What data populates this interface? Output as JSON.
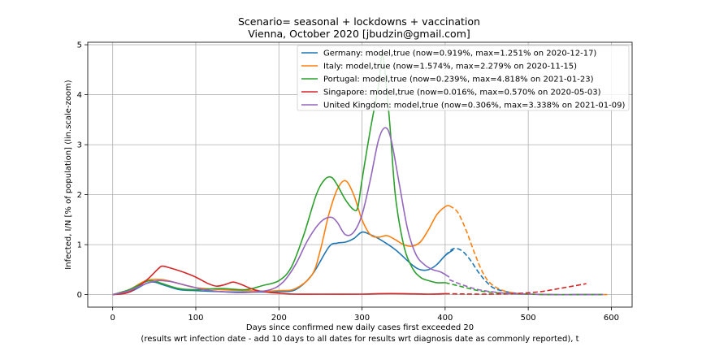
{
  "chart_data": {
    "type": "line",
    "title": "Scenario= seasonal + lockdowns + vaccination",
    "subtitle": "Vienna, October 2020 [jbudzin@gmail.com]",
    "xlabel": "Days since confirmed new daily cases first exceeded 20",
    "xlabel2": "(results wrt infection date - add 10 days to all dates for results wrt diagnosis date as commonly reported), t",
    "ylabel": "Infected, I/N [% of population] (lin.scale-zoom)",
    "xlim": [
      -30,
      625
    ],
    "ylim": [
      -0.25,
      5.05
    ],
    "xticks": [
      0,
      100,
      200,
      300,
      400,
      500,
      600
    ],
    "yticks": [
      0,
      1,
      2,
      3,
      4,
      5
    ],
    "grid": true,
    "legend_position": "top-right",
    "series": [
      {
        "name": "Germany: model,true (now=0.919%, max=1.251% on 2020-12-17)",
        "color": "#1f77b4",
        "true_x": [
          0,
          20,
          40,
          50,
          60,
          80,
          100,
          130,
          160,
          180,
          200,
          220,
          240,
          260,
          270,
          280,
          290,
          300,
          310,
          320,
          340,
          360,
          370,
          380,
          390,
          400,
          410
        ],
        "true_y": [
          0,
          0.05,
          0.22,
          0.25,
          0.2,
          0.1,
          0.08,
          0.06,
          0.05,
          0.05,
          0.06,
          0.1,
          0.4,
          0.95,
          1.03,
          1.05,
          1.12,
          1.25,
          1.2,
          1.12,
          0.9,
          0.6,
          0.5,
          0.5,
          0.6,
          0.78,
          0.9
        ],
        "model_x": [
          400,
          410,
          420,
          430,
          440,
          450,
          460,
          480,
          500,
          530,
          560,
          590
        ],
        "model_y": [
          0.78,
          0.92,
          0.88,
          0.7,
          0.45,
          0.25,
          0.12,
          0.04,
          0.01,
          0.0,
          0.0,
          0.0
        ]
      },
      {
        "name": "Italy: model,true (now=1.574%, max=2.279% on 2020-11-15)",
        "color": "#ff7f0e",
        "true_x": [
          0,
          20,
          40,
          60,
          80,
          100,
          130,
          160,
          180,
          200,
          220,
          240,
          250,
          260,
          270,
          280,
          290,
          300,
          310,
          320,
          330,
          340,
          350,
          360,
          370,
          380,
          390,
          400,
          405
        ],
        "true_y": [
          0,
          0.1,
          0.28,
          0.3,
          0.22,
          0.14,
          0.1,
          0.08,
          0.07,
          0.08,
          0.12,
          0.4,
          0.9,
          1.6,
          2.1,
          2.28,
          2.0,
          1.5,
          1.2,
          1.15,
          1.18,
          1.1,
          1.0,
          0.97,
          1.05,
          1.3,
          1.6,
          1.76,
          1.78
        ],
        "model_x": [
          405,
          415,
          425,
          435,
          445,
          455,
          470,
          490,
          520,
          560,
          595
        ],
        "model_y": [
          1.78,
          1.65,
          1.3,
          0.85,
          0.45,
          0.22,
          0.08,
          0.02,
          0.0,
          0.0,
          0.0
        ]
      },
      {
        "name": "Portugal: model,true (now=0.239%, max=4.818% on 2021-01-23)",
        "color": "#2ca02c",
        "true_x": [
          0,
          20,
          40,
          50,
          60,
          80,
          100,
          130,
          160,
          180,
          200,
          215,
          230,
          245,
          255,
          263,
          270,
          280,
          290,
          295,
          300,
          310,
          320,
          325,
          333,
          340,
          350,
          360,
          370,
          380,
          390,
          400
        ],
        "true_y": [
          0,
          0.1,
          0.26,
          0.27,
          0.22,
          0.12,
          0.1,
          0.12,
          0.1,
          0.18,
          0.28,
          0.55,
          1.2,
          2.0,
          2.3,
          2.35,
          2.2,
          1.9,
          1.7,
          1.75,
          2.3,
          3.3,
          4.2,
          4.8,
          3.5,
          2.0,
          1.0,
          0.55,
          0.35,
          0.28,
          0.24,
          0.24
        ],
        "model_x": [
          400,
          420,
          440,
          460,
          480,
          500,
          530,
          560,
          590
        ],
        "model_y": [
          0.24,
          0.16,
          0.08,
          0.04,
          0.02,
          0.01,
          0.0,
          0.0,
          0.0
        ]
      },
      {
        "name": "Singapore: model,true (now=0.016%, max=0.570% on 2020-05-03)",
        "color": "#d62728",
        "true_x": [
          0,
          20,
          40,
          55,
          60,
          70,
          85,
          100,
          115,
          125,
          135,
          145,
          155,
          170,
          185,
          200,
          220,
          250,
          300,
          320,
          350,
          380,
          400
        ],
        "true_y": [
          0,
          0.05,
          0.28,
          0.52,
          0.57,
          0.53,
          0.45,
          0.35,
          0.22,
          0.17,
          0.2,
          0.25,
          0.2,
          0.1,
          0.05,
          0.03,
          0.01,
          0.01,
          0.01,
          0.02,
          0.02,
          0.01,
          0.02
        ],
        "model_x": [
          400,
          440,
          480,
          510,
          530,
          550,
          570
        ],
        "model_y": [
          0.02,
          0.01,
          0.02,
          0.05,
          0.1,
          0.16,
          0.22
        ]
      },
      {
        "name": "United Kingdom: model,true (now=0.306%, max=3.338% on 2021-01-09)",
        "color": "#9467bd",
        "true_x": [
          0,
          20,
          40,
          55,
          70,
          90,
          110,
          130,
          150,
          170,
          190,
          205,
          220,
          235,
          250,
          262,
          270,
          280,
          290,
          300,
          310,
          320,
          328,
          335,
          345,
          355,
          365,
          375,
          385,
          395,
          405
        ],
        "true_y": [
          0,
          0.08,
          0.22,
          0.28,
          0.26,
          0.18,
          0.1,
          0.06,
          0.04,
          0.05,
          0.1,
          0.25,
          0.6,
          1.1,
          1.45,
          1.55,
          1.45,
          1.2,
          1.25,
          1.6,
          2.3,
          3.1,
          3.34,
          3.1,
          2.2,
          1.3,
          0.8,
          0.6,
          0.5,
          0.45,
          0.35
        ],
        "model_x": [
          405,
          420,
          440,
          460,
          480,
          500,
          530,
          560,
          590
        ],
        "model_y": [
          0.3,
          0.2,
          0.1,
          0.05,
          0.02,
          0.01,
          0.0,
          0.0,
          0.0
        ]
      }
    ]
  }
}
